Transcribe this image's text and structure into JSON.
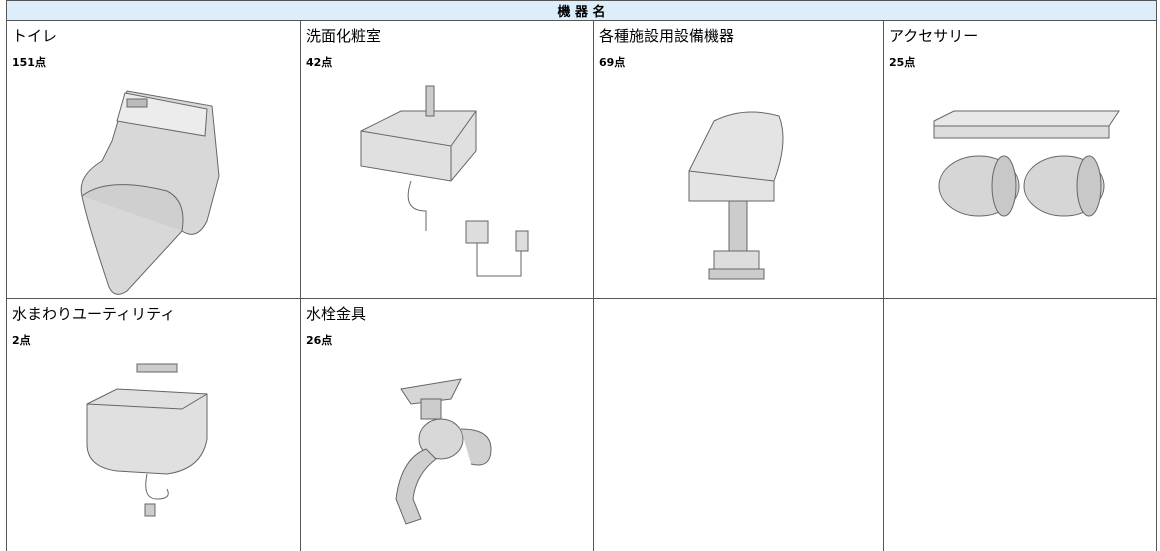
{
  "header": {
    "title": "機 器 名"
  },
  "items": [
    {
      "name": "トイレ",
      "count": "151点"
    },
    {
      "name": "洗面化粧室",
      "count": "42点"
    },
    {
      "name": "各種施設用設備機器",
      "count": "69点"
    },
    {
      "name": "アクセサリー",
      "count": "25点"
    },
    {
      "name": "水まわりユーティリティ",
      "count": "2点"
    },
    {
      "name": "水栓金具",
      "count": "26点"
    }
  ]
}
